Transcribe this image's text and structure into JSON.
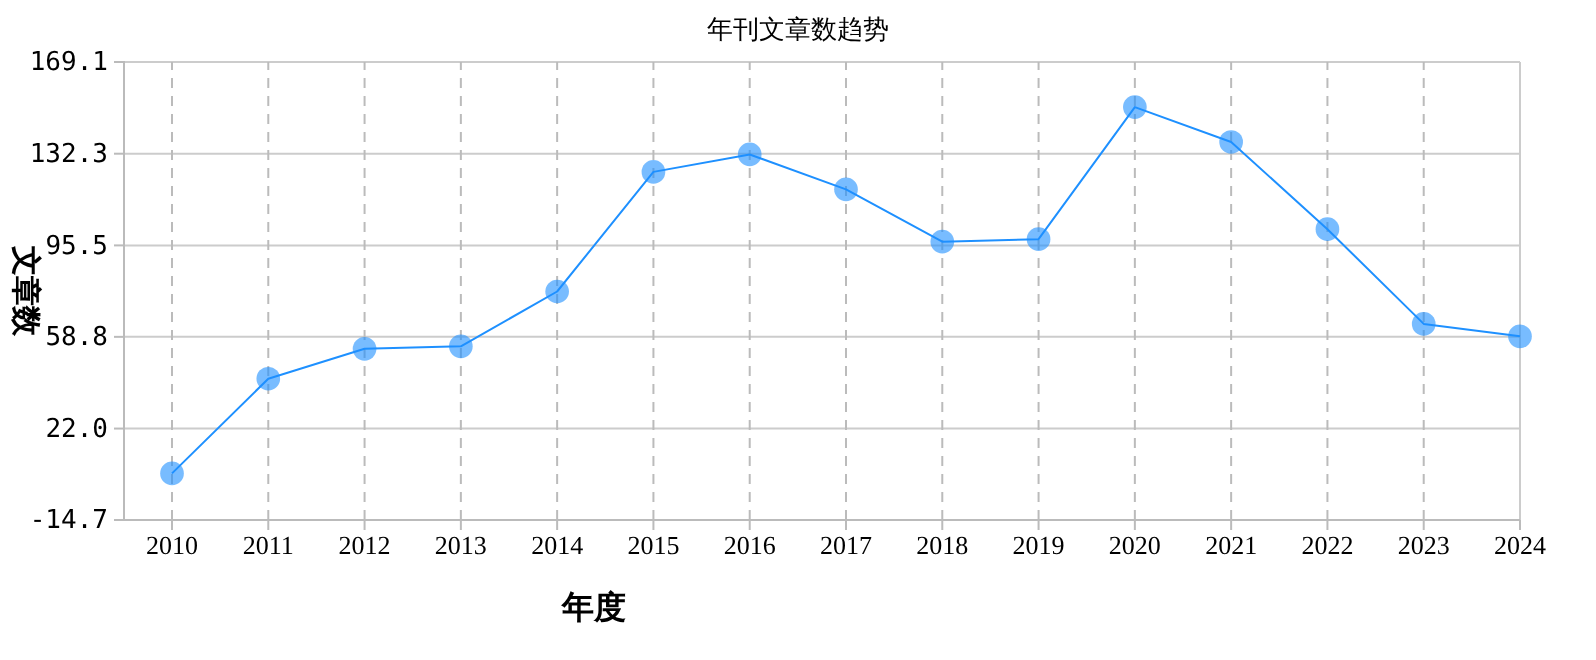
{
  "chart_data": {
    "type": "line",
    "title": "年刊文章数趋势",
    "xlabel": "年度",
    "ylabel": "文章数",
    "categories": [
      "2010",
      "2011",
      "2012",
      "2013",
      "2014",
      "2015",
      "2016",
      "2017",
      "2018",
      "2019",
      "2020",
      "2021",
      "2022",
      "2023",
      "2024"
    ],
    "series": [
      {
        "color": "#1e90ff",
        "values": [
          4,
          42,
          54,
          55,
          77,
          125,
          132,
          118,
          97,
          98,
          151,
          137,
          102,
          64,
          59
        ]
      }
    ],
    "ylim": [
      -14.7,
      169.1
    ],
    "yticks": [
      {
        "value": -14.7,
        "label": "-14.7"
      },
      {
        "value": 22,
        "label": "22.0"
      },
      {
        "value": 58.8,
        "label": "58.8"
      },
      {
        "value": 95.5,
        "label": "95.5"
      },
      {
        "value": 132.3,
        "label": "132.3"
      },
      {
        "value": 169.1,
        "label": "169.1"
      }
    ],
    "grid": true,
    "marker": "circle",
    "line_style": "solid"
  }
}
